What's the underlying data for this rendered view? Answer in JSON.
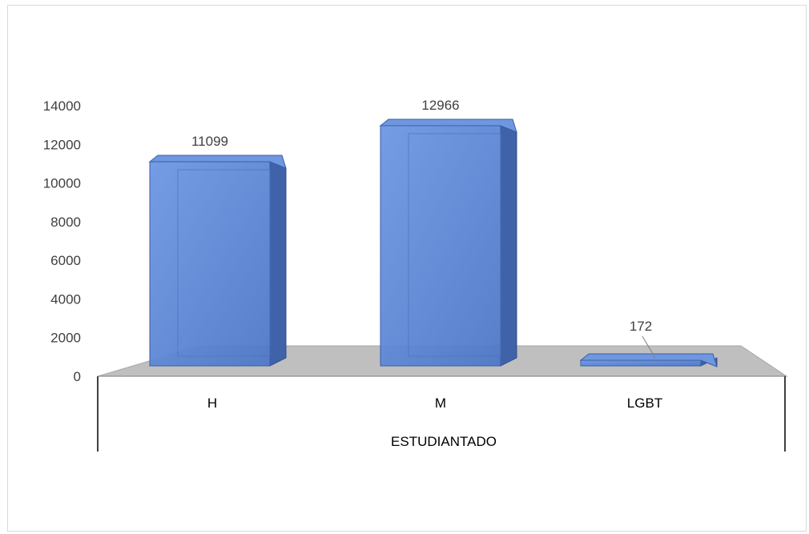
{
  "chart_data": {
    "type": "bar",
    "categories": [
      "H",
      "M",
      "LGBT"
    ],
    "values": [
      11099,
      12966,
      172
    ],
    "group_label": "ESTUDIANTADO",
    "ylim": [
      0,
      14000
    ],
    "yticks": [
      0,
      2000,
      4000,
      6000,
      8000,
      10000,
      12000,
      14000
    ],
    "grid": false,
    "legend": "none",
    "style": "3d-column",
    "colors": {
      "bar_front": "#5b86d6",
      "bar_side": "#3f62a8",
      "bar_top": "#6f97e0",
      "floor": "#bfbfbf",
      "axis": "#404040"
    }
  }
}
